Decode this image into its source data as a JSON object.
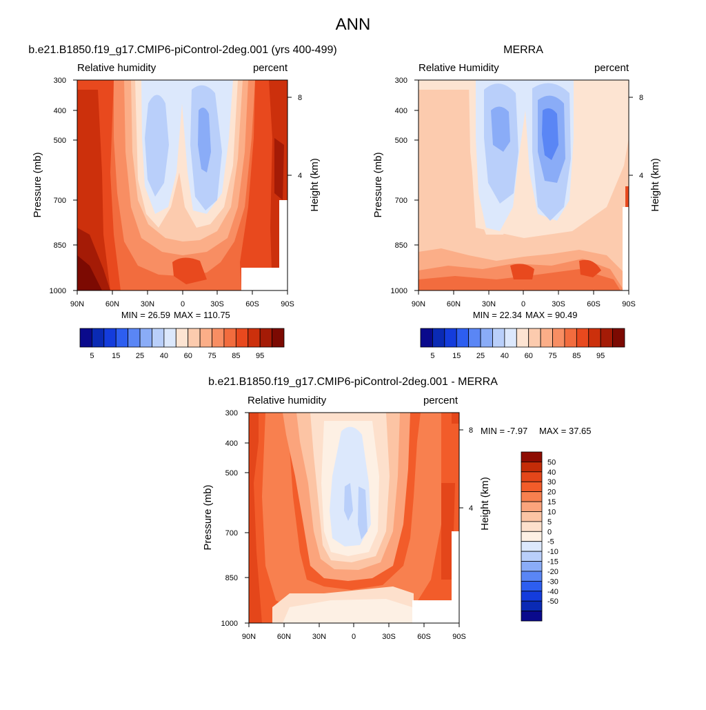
{
  "colors": {
    "abs_scale": [
      "#0a0a8c",
      "#0a2ab4",
      "#143cdc",
      "#2d5ef0",
      "#5a86f5",
      "#8aacf7",
      "#b9cffa",
      "#dce8fc",
      "#fde4d2",
      "#fccbae",
      "#fbae88",
      "#f88e63",
      "#f26c3e",
      "#e8491e",
      "#cc300c",
      "#a41b06",
      "#7c0a02"
    ],
    "diff_scale": [
      "#0a0a8c",
      "#0a2ab4",
      "#143cdc",
      "#2d5ef0",
      "#5a86f5",
      "#8aacf7",
      "#b9cffa",
      "#dce8fc",
      "#fdf0e4",
      "#fde0cc",
      "#fcc4a4",
      "#fba47c",
      "#f8804f",
      "#f25c2a",
      "#e4461a",
      "#c42c08",
      "#8e0c02"
    ]
  },
  "chart_data": {
    "title": "ANN",
    "panels": [
      {
        "id": "model",
        "title": "b.e21.B1850.f19_g17.CMIP6-piControl-2deg.001 (yrs 400-499)",
        "type": "heatmap",
        "variable": "Relative humidity",
        "units": "percent",
        "ylabel": "Pressure (mb)",
        "ylabel_right": "Height (km)",
        "x_ticks": [
          "90N",
          "60N",
          "30N",
          "0",
          "30S",
          "60S",
          "90S"
        ],
        "y_ticks": [
          "300",
          "400",
          "500",
          "700",
          "850",
          "1000"
        ],
        "right_ticks": [
          "8",
          "4"
        ],
        "min_label": "MIN =  26.59",
        "max_label": "MAX = 110.75",
        "colorbar_labels": [
          "5",
          "15",
          "25",
          "40",
          "60",
          "75",
          "85",
          "95"
        ]
      },
      {
        "id": "obs",
        "title": "MERRA",
        "type": "heatmap",
        "variable": "Relative Humidity",
        "units": "percent",
        "ylabel": "Pressure (mb)",
        "ylabel_right": "Height (km)",
        "x_ticks": [
          "90N",
          "60N",
          "30N",
          "0",
          "30S",
          "60S",
          "90S"
        ],
        "y_ticks": [
          "300",
          "400",
          "500",
          "700",
          "850",
          "1000"
        ],
        "right_ticks": [
          "8",
          "4"
        ],
        "min_label": "MIN =  22.34",
        "max_label": "MAX =  90.49",
        "colorbar_labels": [
          "5",
          "15",
          "25",
          "40",
          "60",
          "75",
          "85",
          "95"
        ]
      },
      {
        "id": "diff",
        "title": "b.e21.B1850.f19_g17.CMIP6-piControl-2deg.001 - MERRA",
        "type": "heatmap",
        "variable": "Relative humidity",
        "units": "percent",
        "ylabel": "Pressure (mb)",
        "ylabel_right": "Height (km)",
        "x_ticks": [
          "90N",
          "60N",
          "30N",
          "0",
          "30S",
          "60S",
          "90S"
        ],
        "y_ticks": [
          "300",
          "400",
          "500",
          "700",
          "850",
          "1000"
        ],
        "right_ticks": [
          "8",
          "4"
        ],
        "min_label": "MIN =  -7.97",
        "max_label": "MAX =  37.65",
        "colorbar_labels": [
          "50",
          "40",
          "30",
          "20",
          "15",
          "10",
          "5",
          "0",
          "-5",
          "-10",
          "-15",
          "-20",
          "-30",
          "-40",
          "-50"
        ]
      }
    ]
  }
}
